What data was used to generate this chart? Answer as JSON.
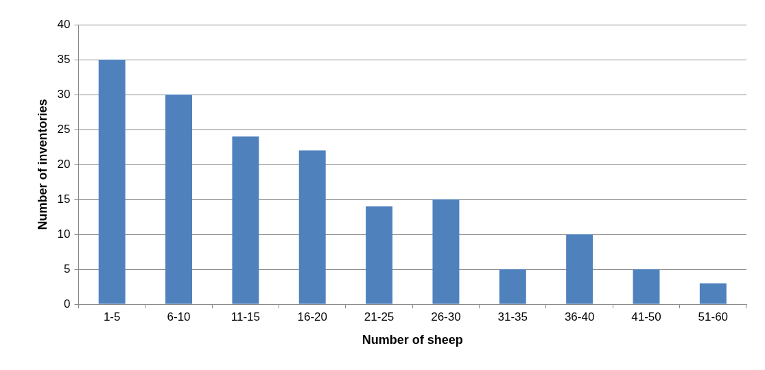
{
  "chart_data": {
    "type": "bar",
    "xlabel": "Number of sheep",
    "ylabel": "Number of inventories",
    "categories": [
      "1-5",
      "6-10",
      "11-15",
      "16-20",
      "21-25",
      "26-30",
      "31-35",
      "36-40",
      "41-50",
      "51-60"
    ],
    "values": [
      35,
      30,
      24,
      22,
      14,
      15,
      5,
      10,
      5,
      3
    ],
    "color": "#4f81bd",
    "ylim": [
      0,
      40
    ],
    "yticks": [
      0,
      5,
      10,
      15,
      20,
      25,
      30,
      35,
      40
    ],
    "grid": "y",
    "legend": false
  }
}
